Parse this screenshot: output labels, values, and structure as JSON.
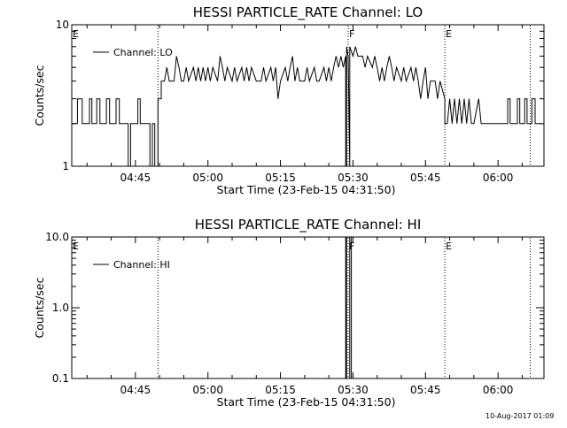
{
  "footer_timestamp": "10-Aug-2017 01:09",
  "chart_data": [
    {
      "type": "line",
      "title": "HESSI PARTICLE_RATE Channel: LO",
      "xlabel": "Start Time (23-Feb-15 04:31:50)",
      "ylabel": "Counts/sec",
      "y_scale": "log",
      "ylim": [
        1,
        10
      ],
      "y_ticks": [
        {
          "value": 1,
          "label": "1"
        },
        {
          "value": 10,
          "label": "10"
        }
      ],
      "xlim": [
        "04:31:50",
        "06:09:30"
      ],
      "x_ticks": [
        "04:45",
        "05:00",
        "05:15",
        "05:30",
        "05:45",
        "06:00"
      ],
      "legend": {
        "entries": [
          "Channel: LO"
        ],
        "placement": "top-left"
      },
      "series": [
        {
          "name": "Channel: LO",
          "points": [
            [
              "04:31:50",
              2
            ],
            [
              "04:33:00",
              2
            ],
            [
              "04:33:00",
              3
            ],
            [
              "04:34:00",
              3
            ],
            [
              "04:34:00",
              2
            ],
            [
              "04:35:30",
              2
            ],
            [
              "04:35:30",
              3
            ],
            [
              "04:36:00",
              3
            ],
            [
              "04:36:00",
              2
            ],
            [
              "04:37:00",
              2
            ],
            [
              "04:37:00",
              3
            ],
            [
              "04:37:40",
              3
            ],
            [
              "04:37:40",
              2
            ],
            [
              "04:39:00",
              2
            ],
            [
              "04:39:00",
              3
            ],
            [
              "04:39:40",
              3
            ],
            [
              "04:39:40",
              2
            ],
            [
              "04:41:00",
              2
            ],
            [
              "04:41:00",
              3
            ],
            [
              "04:41:40",
              3
            ],
            [
              "04:41:40",
              2
            ],
            [
              "04:43:30",
              2
            ],
            [
              "04:43:30",
              1
            ],
            [
              "04:44:00",
              1
            ],
            [
              "04:44:00",
              2
            ],
            [
              "04:45:30",
              2
            ],
            [
              "04:45:30",
              3
            ],
            [
              "04:46:00",
              3
            ],
            [
              "04:46:00",
              2
            ],
            [
              "04:48:00",
              2
            ],
            [
              "04:48:00",
              1
            ],
            [
              "04:48:30",
              1
            ],
            [
              "04:48:30",
              2
            ],
            [
              "04:49:00",
              2
            ],
            [
              "04:49:00",
              1
            ],
            [
              "04:49:40",
              1
            ],
            [
              "04:49:40",
              3
            ],
            [
              "04:50:20",
              3
            ],
            [
              "04:50:20",
              4
            ],
            [
              "04:51:00",
              4
            ],
            [
              "04:51:30",
              5
            ],
            [
              "04:52:00",
              4
            ],
            [
              "04:53:00",
              4
            ],
            [
              "04:53:30",
              6
            ],
            [
              "04:54:00",
              5
            ],
            [
              "04:54:30",
              4
            ],
            [
              "04:55:00",
              4
            ],
            [
              "04:55:30",
              5
            ],
            [
              "04:56:00",
              4
            ],
            [
              "04:57:00",
              5
            ],
            [
              "04:57:30",
              4
            ],
            [
              "04:58:00",
              5
            ],
            [
              "04:58:30",
              4
            ],
            [
              "04:59:00",
              5
            ],
            [
              "04:59:30",
              4
            ],
            [
              "05:00:00",
              5
            ],
            [
              "05:00:30",
              4
            ],
            [
              "05:01:00",
              5
            ],
            [
              "05:02:00",
              4
            ],
            [
              "05:02:30",
              6
            ],
            [
              "05:03:00",
              5
            ],
            [
              "05:03:30",
              4
            ],
            [
              "05:04:00",
              5
            ],
            [
              "05:05:00",
              4
            ],
            [
              "05:05:30",
              5
            ],
            [
              "05:06:00",
              4
            ],
            [
              "05:07:00",
              5
            ],
            [
              "05:07:30",
              4
            ],
            [
              "05:08:00",
              5
            ],
            [
              "05:08:30",
              4
            ],
            [
              "05:09:00",
              5
            ],
            [
              "05:10:00",
              4
            ],
            [
              "05:11:00",
              4
            ],
            [
              "05:11:30",
              5
            ],
            [
              "05:12:00",
              4
            ],
            [
              "05:13:00",
              5
            ],
            [
              "05:13:30",
              4
            ],
            [
              "05:14:00",
              5
            ],
            [
              "05:14:30",
              3
            ],
            [
              "05:15:00",
              4
            ],
            [
              "05:16:00",
              5
            ],
            [
              "05:16:30",
              4
            ],
            [
              "05:17:00",
              5
            ],
            [
              "05:17:30",
              6
            ],
            [
              "05:18:00",
              4
            ],
            [
              "05:18:30",
              5
            ],
            [
              "05:19:00",
              4
            ],
            [
              "05:20:00",
              4
            ],
            [
              "05:20:30",
              5
            ],
            [
              "05:21:00",
              4
            ],
            [
              "05:22:00",
              5
            ],
            [
              "05:22:30",
              4
            ],
            [
              "05:23:00",
              4
            ],
            [
              "05:24:00",
              5
            ],
            [
              "05:24:30",
              4
            ],
            [
              "05:25:00",
              5
            ],
            [
              "05:25:30",
              4
            ],
            [
              "05:26:00",
              5
            ],
            [
              "05:26:30",
              6
            ],
            [
              "05:27:00",
              5
            ],
            [
              "05:27:30",
              6
            ],
            [
              "05:28:00",
              5
            ],
            [
              "05:28:30",
              6
            ],
            [
              "05:28:30",
              1
            ],
            [
              "05:28:40",
              1
            ],
            [
              "05:28:40",
              7
            ],
            [
              "05:29:00",
              6
            ],
            [
              "05:29:20",
              1
            ],
            [
              "05:29:20",
              7
            ],
            [
              "05:30:00",
              6
            ],
            [
              "05:30:30",
              7
            ],
            [
              "05:31:00",
              6
            ],
            [
              "05:32:00",
              6
            ],
            [
              "05:32:30",
              5
            ],
            [
              "05:33:00",
              6
            ],
            [
              "05:34:00",
              5
            ],
            [
              "05:34:30",
              6
            ],
            [
              "05:35:00",
              5
            ],
            [
              "05:35:30",
              4
            ],
            [
              "05:36:00",
              5
            ],
            [
              "05:36:30",
              4
            ],
            [
              "05:37:00",
              5
            ],
            [
              "05:37:30",
              6
            ],
            [
              "05:38:00",
              5
            ],
            [
              "05:38:30",
              4
            ],
            [
              "05:39:00",
              5
            ],
            [
              "05:40:00",
              4
            ],
            [
              "05:40:30",
              5
            ],
            [
              "05:41:00",
              4
            ],
            [
              "05:42:00",
              5
            ],
            [
              "05:42:30",
              4
            ],
            [
              "05:43:00",
              5
            ],
            [
              "05:43:30",
              4
            ],
            [
              "05:44:00",
              3
            ],
            [
              "05:44:30",
              4
            ],
            [
              "05:45:00",
              5
            ],
            [
              "05:45:30",
              3
            ],
            [
              "05:46:00",
              4
            ],
            [
              "05:47:00",
              4
            ],
            [
              "05:47:30",
              3
            ],
            [
              "05:48:00",
              4
            ],
            [
              "05:49:00",
              3
            ],
            [
              "05:49:00",
              2
            ],
            [
              "05:49:30",
              2
            ],
            [
              "05:50:00",
              3
            ],
            [
              "05:50:30",
              2
            ],
            [
              "05:51:00",
              3
            ],
            [
              "05:51:30",
              2
            ],
            [
              "05:52:00",
              3
            ],
            [
              "05:52:30",
              2
            ],
            [
              "05:53:00",
              3
            ],
            [
              "05:53:30",
              2
            ],
            [
              "05:54:00",
              3
            ],
            [
              "05:54:30",
              2
            ],
            [
              "05:55:00",
              2
            ],
            [
              "05:56:00",
              3
            ],
            [
              "05:56:30",
              2
            ],
            [
              "05:57:00",
              2
            ],
            [
              "05:58:00",
              2
            ],
            [
              "06:02:00",
              2
            ],
            [
              "06:02:00",
              3
            ],
            [
              "06:02:30",
              3
            ],
            [
              "06:02:30",
              2
            ],
            [
              "06:04:00",
              2
            ],
            [
              "06:04:00",
              3
            ],
            [
              "06:04:30",
              3
            ],
            [
              "06:04:30",
              2
            ],
            [
              "06:05:30",
              2
            ],
            [
              "06:05:30",
              3
            ],
            [
              "06:06:00",
              3
            ],
            [
              "06:06:00",
              2
            ],
            [
              "06:07:00",
              2
            ],
            [
              "06:07:00",
              3
            ],
            [
              "06:07:40",
              3
            ],
            [
              "06:07:40",
              2
            ],
            [
              "06:09:00",
              2
            ]
          ]
        }
      ],
      "vertical_markers": [
        {
          "time": "04:31:50",
          "label": "E",
          "style": "dotted"
        },
        {
          "time": "04:49:40",
          "label": "",
          "style": "dotted"
        },
        {
          "time": "05:29:00",
          "label": "F",
          "style": "dotted"
        },
        {
          "time": "05:49:00",
          "label": "E",
          "style": "dotted"
        },
        {
          "time": "06:06:40",
          "label": "",
          "style": "dotted"
        }
      ]
    },
    {
      "type": "line",
      "title": "HESSI PARTICLE_RATE Channel: HI",
      "xlabel": "Start Time (23-Feb-15 04:31:50)",
      "ylabel": "Counts/sec",
      "y_scale": "log",
      "ylim": [
        0.1,
        10
      ],
      "y_ticks": [
        {
          "value": 0.1,
          "label": "0.1"
        },
        {
          "value": 1,
          "label": "1.0"
        },
        {
          "value": 10,
          "label": "10.0"
        }
      ],
      "xlim": [
        "04:31:50",
        "06:09:30"
      ],
      "x_ticks": [
        "04:45",
        "05:00",
        "05:15",
        "05:30",
        "05:45",
        "06:00"
      ],
      "legend": {
        "entries": [
          "Channel: HI"
        ],
        "placement": "top-left"
      },
      "series": [
        {
          "name": "Channel: HI",
          "points": [
            [
              "05:28:30",
              0.1
            ],
            [
              "05:28:30",
              10
            ],
            [
              "05:28:40",
              10
            ],
            [
              "05:28:40",
              0.1
            ],
            [
              "05:29:20",
              0.1
            ],
            [
              "05:29:20",
              10
            ],
            [
              "05:29:40",
              10
            ],
            [
              "05:29:40",
              0.1
            ]
          ]
        }
      ],
      "vertical_markers": [
        {
          "time": "04:31:50",
          "label": "E",
          "style": "dotted"
        },
        {
          "time": "04:49:40",
          "label": "",
          "style": "dotted"
        },
        {
          "time": "05:29:00",
          "label": "F",
          "style": "dotted"
        },
        {
          "time": "05:49:00",
          "label": "E",
          "style": "dotted"
        },
        {
          "time": "06:06:40",
          "label": "",
          "style": "dotted"
        }
      ]
    }
  ]
}
